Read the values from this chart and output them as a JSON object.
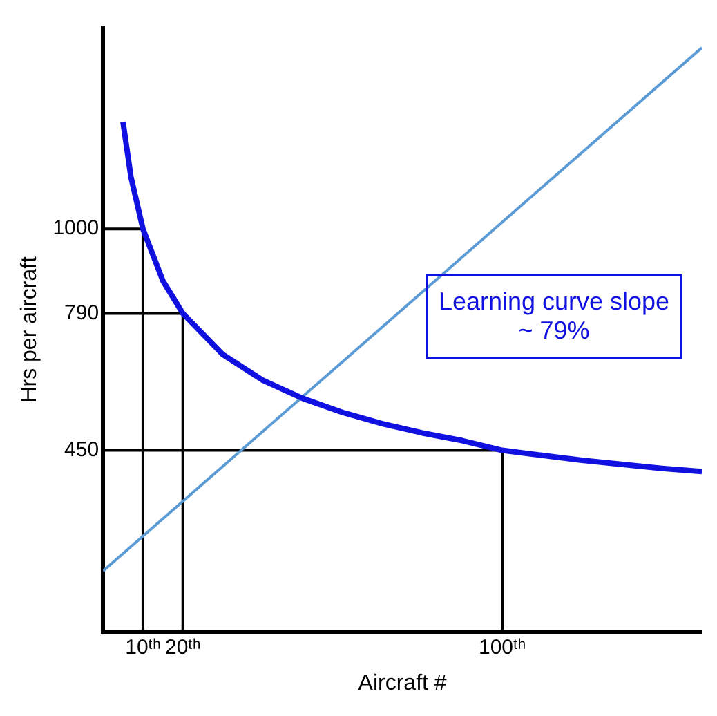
{
  "chart_data": {
    "type": "line",
    "xlabel": "Aircraft #",
    "ylabel": "Hrs per aircraft",
    "annotations": [
      "Learning curve slope ~ 79%"
    ],
    "xlim": [
      0,
      150
    ],
    "xticks": [
      {
        "value": 10,
        "label": "10ᵗʰ"
      },
      {
        "value": 20,
        "label": "20ᵗʰ"
      },
      {
        "value": 100,
        "label": "100ᵗʰ"
      }
    ],
    "ylim": [
      0,
      1500
    ],
    "yticks": [
      450,
      790,
      1000
    ],
    "grid": false,
    "legend": false,
    "series": [
      {
        "type": "line",
        "color": "#1010e0",
        "x": [
          5,
          7,
          10,
          15,
          20,
          30,
          40,
          50,
          60,
          70,
          80,
          90,
          100,
          120,
          140,
          150
        ],
        "values": [
          1266,
          1129,
          1000,
          871,
          790,
          688,
          624,
          579,
          544,
          516,
          493,
          474,
          450,
          425,
          405,
          397
        ]
      },
      {
        "type": "line",
        "color": "#5b9bd5",
        "x": [
          0,
          150
        ],
        "values": [
          150,
          1450
        ]
      },
      {
        "type": "line",
        "color": "#000000",
        "x": [
          0,
          10,
          10
        ],
        "values": [
          1000,
          1000,
          0
        ]
      },
      {
        "type": "line",
        "color": "#000000",
        "x": [
          0,
          20,
          20
        ],
        "values": [
          790,
          790,
          0
        ]
      },
      {
        "type": "line",
        "color": "#000000",
        "x": [
          0,
          100,
          100
        ],
        "values": [
          450,
          450,
          0
        ]
      }
    ]
  }
}
